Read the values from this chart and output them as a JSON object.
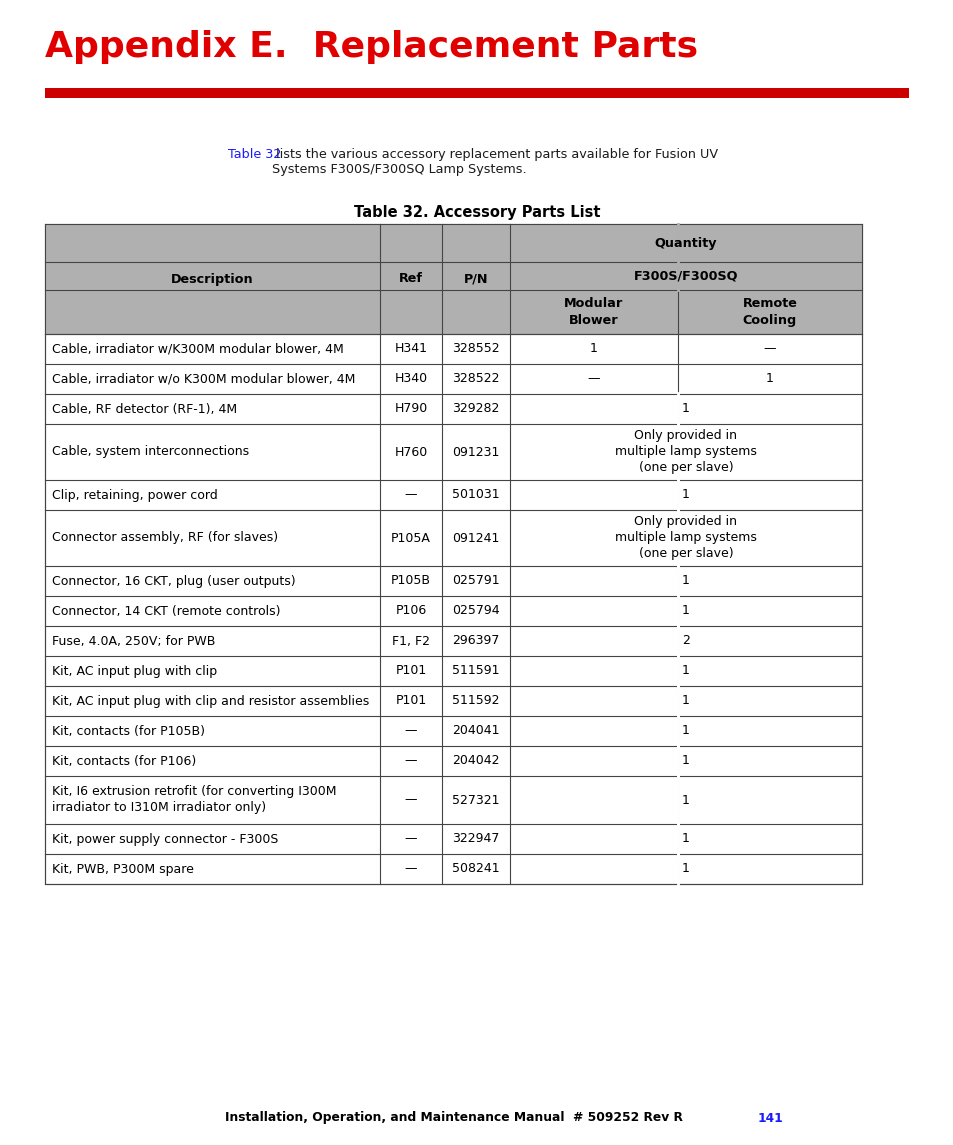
{
  "title": "Appendix E.  Replacement Parts",
  "title_color": "#e00000",
  "red_bar_color": "#cc0000",
  "table_title": "Table 32. Accessory Parts List",
  "intro_text_plain": " lists the various accessory replacement parts available for Fusion UV\nSystems F300S/F300SQ Lamp Systems.",
  "intro_link": "Table 32",
  "intro_link_color": "#1a1aff",
  "header_bg": "#b0b0b0",
  "rows": [
    {
      "desc": "Cable, irradiator w/K300M modular blower, 4M",
      "ref": "H341",
      "pn": "328552",
      "mod": "1",
      "rem": "—",
      "span": false
    },
    {
      "desc": "Cable, irradiator w/o K300M modular blower, 4M",
      "ref": "H340",
      "pn": "328522",
      "mod": "—",
      "rem": "1",
      "span": false
    },
    {
      "desc": "Cable, RF detector (RF-1), 4M",
      "ref": "H790",
      "pn": "329282",
      "mod": "1",
      "rem": "",
      "span": true
    },
    {
      "desc": "Cable, system interconnections",
      "ref": "H760",
      "pn": "091231",
      "mod": "Only provided in\nmultiple lamp systems\n(one per slave)",
      "rem": "",
      "span": true
    },
    {
      "desc": "Clip, retaining, power cord",
      "ref": "—",
      "pn": "501031",
      "mod": "1",
      "rem": "",
      "span": true
    },
    {
      "desc": "Connector assembly, RF (for slaves)",
      "ref": "P105A",
      "pn": "091241",
      "mod": "Only provided in\nmultiple lamp systems\n(one per slave)",
      "rem": "",
      "span": true
    },
    {
      "desc": "Connector, 16 CKT, plug (user outputs)",
      "ref": "P105B",
      "pn": "025791",
      "mod": "1",
      "rem": "",
      "span": true
    },
    {
      "desc": "Connector, 14 CKT (remote controls)",
      "ref": "P106",
      "pn": "025794",
      "mod": "1",
      "rem": "",
      "span": true
    },
    {
      "desc": "Fuse, 4.0A, 250V; for PWB",
      "ref": "F1, F2",
      "pn": "296397",
      "mod": "2",
      "rem": "",
      "span": true
    },
    {
      "desc": "Kit, AC input plug with clip",
      "ref": "P101",
      "pn": "511591",
      "mod": "1",
      "rem": "",
      "span": true
    },
    {
      "desc": "Kit, AC input plug with clip and resistor assemblies",
      "ref": "P101",
      "pn": "511592",
      "mod": "1",
      "rem": "",
      "span": true
    },
    {
      "desc": "Kit, contacts (for P105B)",
      "ref": "—",
      "pn": "204041",
      "mod": "1",
      "rem": "",
      "span": true
    },
    {
      "desc": "Kit, contacts (for P106)",
      "ref": "—",
      "pn": "204042",
      "mod": "1",
      "rem": "",
      "span": true
    },
    {
      "desc": "Kit, I6 extrusion retrofit (for converting I300M\nirradiator to I310M irradiator only)",
      "ref": "—",
      "pn": "527321",
      "mod": "1",
      "rem": "",
      "span": true
    },
    {
      "desc": "Kit, power supply connector - F300S",
      "ref": "—",
      "pn": "322947",
      "mod": "1",
      "rem": "",
      "span": true
    },
    {
      "desc": "Kit, PWB, P300M spare",
      "ref": "—",
      "pn": "508241",
      "mod": "1",
      "rem": "",
      "span": true
    }
  ],
  "footer_text": "Installation, Operation, and Maintenance Manual  # 509252 Rev R",
  "footer_page": "141",
  "footer_color": "#000000",
  "footer_page_color": "#1a1aff",
  "bg_color": "#ffffff"
}
